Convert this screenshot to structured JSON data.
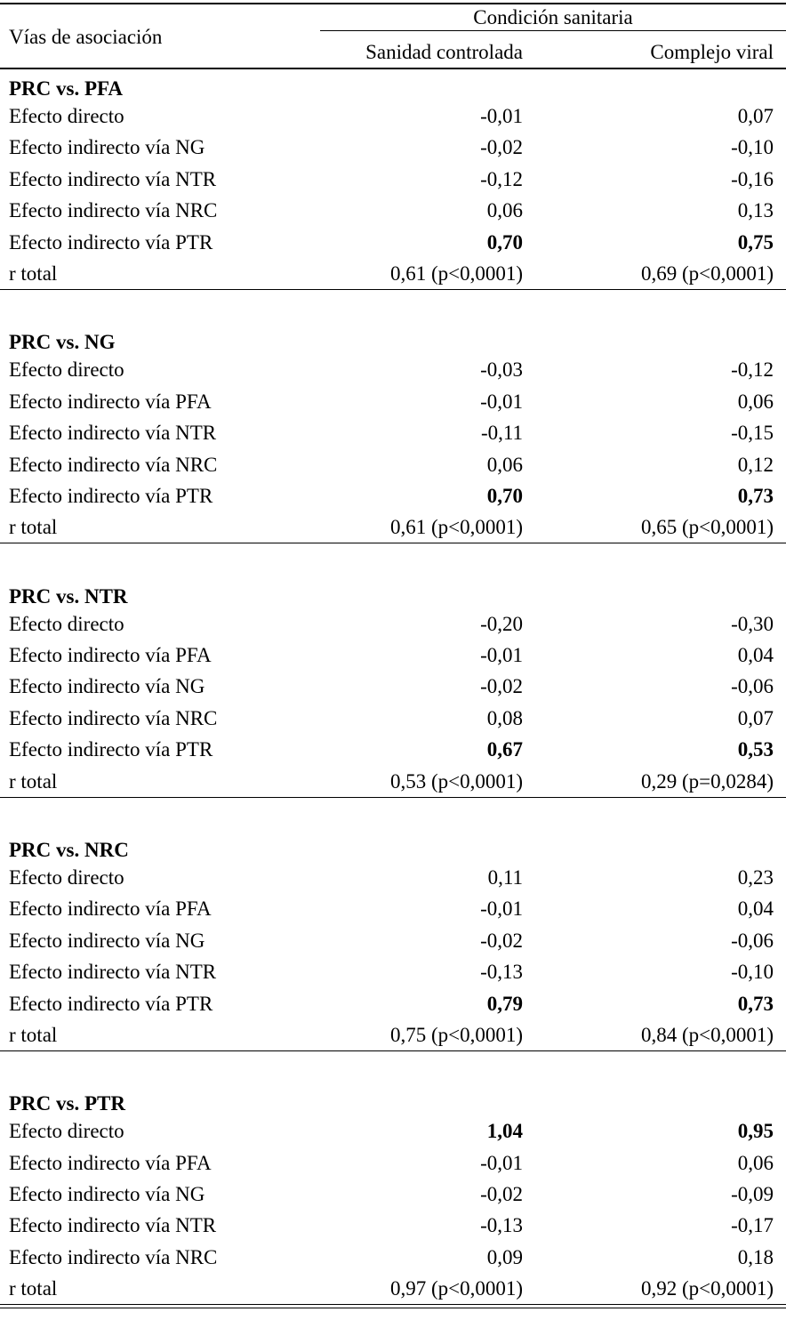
{
  "header": {
    "column_group": "Condición sanitaria",
    "row_header": "Vías de asociación",
    "columns": [
      "Sanidad controlada",
      "Complejo viral"
    ]
  },
  "groups": [
    {
      "title": "PRC vs. PFA",
      "rows": [
        {
          "label": "Efecto directo",
          "values": [
            "-0,01",
            "0,07"
          ]
        },
        {
          "label": "Efecto indirecto vía NG",
          "values": [
            "-0,02",
            "-0,10"
          ]
        },
        {
          "label": "Efecto indirecto vía NTR",
          "values": [
            "-0,12",
            "-0,16"
          ]
        },
        {
          "label": "Efecto indirecto vía NRC",
          "values": [
            "0,06",
            "0,13"
          ]
        },
        {
          "label": "Efecto indirecto vía PTR",
          "values": [
            "0,70",
            "0,75"
          ],
          "bold": true
        },
        {
          "label": "r total",
          "values": [
            "0,61 (p<0,0001)",
            "0,69 (p<0,0001)"
          ]
        }
      ]
    },
    {
      "title": "PRC vs. NG",
      "rows": [
        {
          "label": "Efecto directo",
          "values": [
            "-0,03",
            "-0,12"
          ]
        },
        {
          "label": "Efecto indirecto vía PFA",
          "values": [
            "-0,01",
            "0,06"
          ]
        },
        {
          "label": "Efecto indirecto vía NTR",
          "values": [
            "-0,11",
            "-0,15"
          ]
        },
        {
          "label": "Efecto indirecto vía NRC",
          "values": [
            "0,06",
            "0,12"
          ]
        },
        {
          "label": "Efecto indirecto vía PTR",
          "values": [
            "0,70",
            "0,73"
          ],
          "bold": true
        },
        {
          "label": "r total",
          "values": [
            "0,61 (p<0,0001)",
            "0,65 (p<0,0001)"
          ]
        }
      ]
    },
    {
      "title": "PRC vs. NTR",
      "rows": [
        {
          "label": "Efecto directo",
          "values": [
            "-0,20",
            "-0,30"
          ]
        },
        {
          "label": "Efecto indirecto vía PFA",
          "values": [
            "-0,01",
            "0,04"
          ]
        },
        {
          "label": "Efecto indirecto vía NG",
          "values": [
            "-0,02",
            "-0,06"
          ]
        },
        {
          "label": "Efecto indirecto vía NRC",
          "values": [
            "0,08",
            "0,07"
          ]
        },
        {
          "label": "Efecto indirecto vía PTR",
          "values": [
            "0,67",
            "0,53"
          ],
          "bold": true
        },
        {
          "label": "r total",
          "values": [
            "0,53 (p<0,0001)",
            "0,29 (p=0,0284)"
          ]
        }
      ]
    },
    {
      "title": "PRC vs. NRC",
      "rows": [
        {
          "label": "Efecto directo",
          "values": [
            "0,11",
            "0,23"
          ]
        },
        {
          "label": "Efecto indirecto vía PFA",
          "values": [
            "-0,01",
            "0,04"
          ]
        },
        {
          "label": "Efecto indirecto vía NG",
          "values": [
            "-0,02",
            "-0,06"
          ]
        },
        {
          "label": "Efecto indirecto vía NTR",
          "values": [
            "-0,13",
            "-0,10"
          ]
        },
        {
          "label": "Efecto indirecto vía PTR",
          "values": [
            "0,79",
            "0,73"
          ],
          "bold": true
        },
        {
          "label": "r total",
          "values": [
            "0,75 (p<0,0001)",
            "0,84 (p<0,0001)"
          ]
        }
      ]
    },
    {
      "title": "PRC vs. PTR",
      "rows": [
        {
          "label": "Efecto directo",
          "values": [
            "1,04",
            "0,95"
          ],
          "bold": true
        },
        {
          "label": "Efecto indirecto vía PFA",
          "values": [
            "-0,01",
            "0,06"
          ]
        },
        {
          "label": "Efecto indirecto vía NG",
          "values": [
            "-0,02",
            "-0,09"
          ]
        },
        {
          "label": "Efecto indirecto vía NTR",
          "values": [
            "-0,13",
            "-0,17"
          ]
        },
        {
          "label": "Efecto indirecto vía NRC",
          "values": [
            "0,09",
            "0,18"
          ]
        },
        {
          "label": "r total",
          "values": [
            "0,97 (p<0,0001)",
            "0,92 (p<0,0001)"
          ]
        }
      ]
    }
  ]
}
